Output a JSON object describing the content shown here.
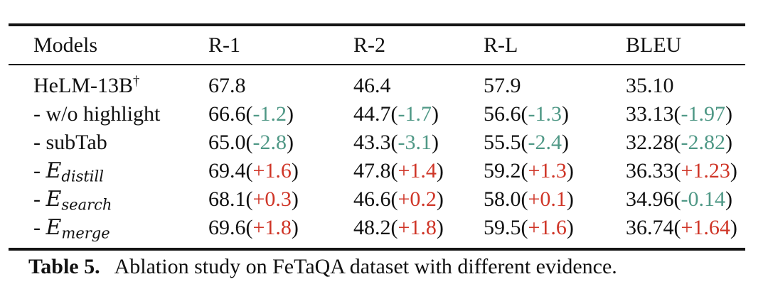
{
  "table": {
    "headers": [
      "Models",
      "R-1",
      "R-2",
      "R-L",
      "BLEU"
    ],
    "delta_format": {
      "open": "(",
      "close": ")"
    },
    "rows": [
      {
        "model": {
          "prefix": "HeLM-13B",
          "math": "",
          "sub": "",
          "sup": "†"
        },
        "metrics": [
          {
            "value": "67.8",
            "delta": ""
          },
          {
            "value": "46.4",
            "delta": ""
          },
          {
            "value": "57.9",
            "delta": ""
          },
          {
            "value": "35.10",
            "delta": ""
          }
        ]
      },
      {
        "model": {
          "prefix": "- w/o highlight",
          "math": "",
          "sub": "",
          "sup": ""
        },
        "metrics": [
          {
            "value": "66.6",
            "delta": "-1.2"
          },
          {
            "value": "44.7",
            "delta": "-1.7"
          },
          {
            "value": "56.6",
            "delta": "-1.3"
          },
          {
            "value": "33.13",
            "delta": "-1.97"
          }
        ]
      },
      {
        "model": {
          "prefix": "- subTab",
          "math": "",
          "sub": "",
          "sup": ""
        },
        "metrics": [
          {
            "value": "65.0",
            "delta": "-2.8"
          },
          {
            "value": "43.3",
            "delta": "-3.1"
          },
          {
            "value": "55.5",
            "delta": "-2.4"
          },
          {
            "value": "32.28",
            "delta": "-2.82"
          }
        ]
      },
      {
        "model": {
          "prefix": "- ",
          "math": "E",
          "sub": "distill",
          "sup": ""
        },
        "metrics": [
          {
            "value": "69.4",
            "delta": "+1.6"
          },
          {
            "value": "47.8",
            "delta": "+1.4"
          },
          {
            "value": "59.2",
            "delta": "+1.3"
          },
          {
            "value": "36.33",
            "delta": "+1.23"
          }
        ]
      },
      {
        "model": {
          "prefix": "- ",
          "math": "E",
          "sub": "search",
          "sup": ""
        },
        "metrics": [
          {
            "value": "68.1",
            "delta": "+0.3"
          },
          {
            "value": "46.6",
            "delta": "+0.2"
          },
          {
            "value": "58.0",
            "delta": "+0.1"
          },
          {
            "value": "34.96",
            "delta": "-0.14"
          }
        ]
      },
      {
        "model": {
          "prefix": "- ",
          "math": "E",
          "sub": "merge",
          "sup": ""
        },
        "metrics": [
          {
            "value": "69.6",
            "delta": "+1.8"
          },
          {
            "value": "48.2",
            "delta": "+1.8"
          },
          {
            "value": "59.5",
            "delta": "+1.6"
          },
          {
            "value": "36.74",
            "delta": "+1.64"
          }
        ]
      }
    ]
  },
  "caption": {
    "label": "Table 5.",
    "text": "Ablation study on FeTaQA dataset with different evidence."
  },
  "colors": {
    "positive_delta": "#cf3527",
    "negative_delta": "#4f9886",
    "text": "#111111",
    "rule": "#141414"
  }
}
